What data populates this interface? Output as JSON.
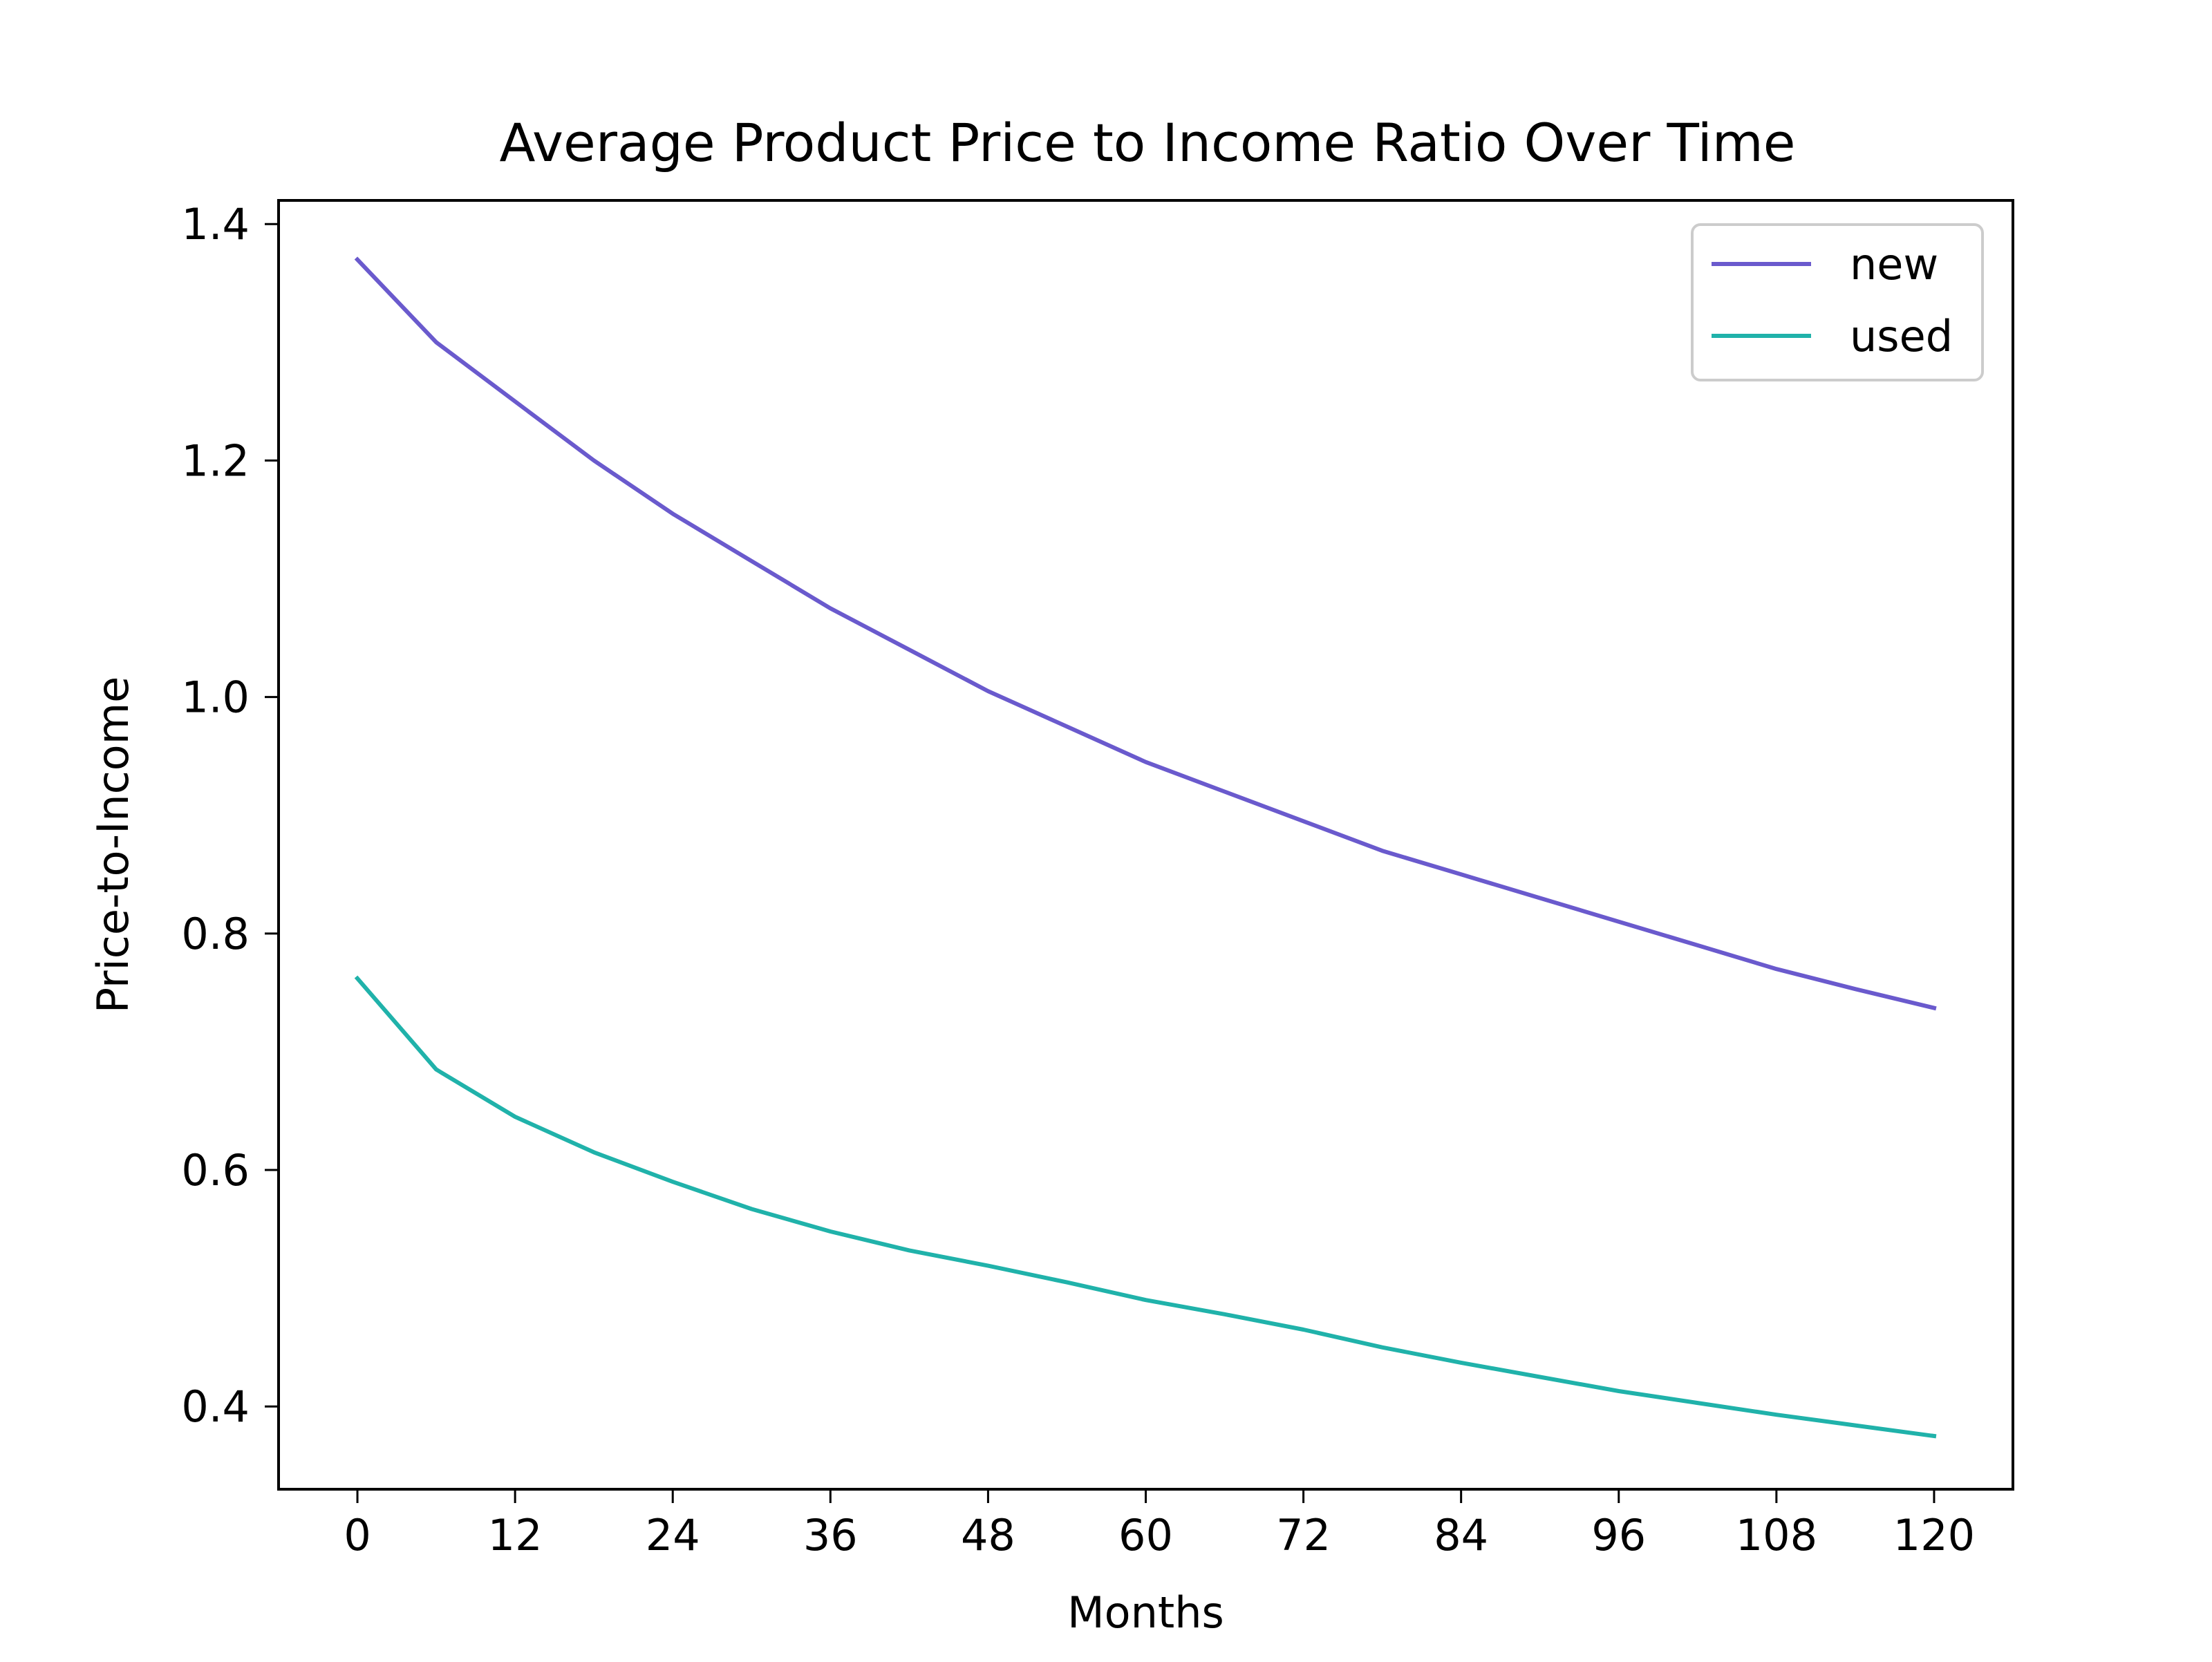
{
  "chart_data": {
    "type": "line",
    "title": "Average Product Price to Income Ratio Over Time",
    "xlabel": "Months",
    "ylabel": "Price-to-Income",
    "xlim": [
      -6,
      126
    ],
    "ylim": [
      0.33,
      1.42
    ],
    "xticks": [
      0,
      12,
      24,
      36,
      48,
      60,
      72,
      84,
      96,
      108,
      120
    ],
    "yticks": [
      0.4,
      0.6,
      0.8,
      1.0,
      1.2,
      1.4
    ],
    "ytick_labels": [
      "0.4",
      "0.6",
      "0.8",
      "1.0",
      "1.2",
      "1.4"
    ],
    "grid": false,
    "legend_position": "upper-right",
    "x": [
      0,
      6,
      12,
      18,
      24,
      30,
      36,
      42,
      48,
      54,
      60,
      66,
      72,
      78,
      84,
      90,
      96,
      102,
      108,
      114,
      120
    ],
    "series": [
      {
        "name": "new",
        "color": "#6a5acd",
        "values": [
          1.37,
          1.3,
          1.25,
          1.2,
          1.155,
          1.115,
          1.075,
          1.04,
          1.005,
          0.975,
          0.945,
          0.92,
          0.895,
          0.87,
          0.85,
          0.83,
          0.81,
          0.79,
          0.77,
          0.753,
          0.737
        ]
      },
      {
        "name": "used",
        "color": "#20b2aa",
        "values": [
          0.762,
          0.685,
          0.645,
          0.615,
          0.59,
          0.567,
          0.548,
          0.532,
          0.519,
          0.505,
          0.49,
          0.478,
          0.465,
          0.45,
          0.437,
          0.425,
          0.413,
          0.403,
          0.393,
          0.384,
          0.375
        ]
      }
    ]
  }
}
